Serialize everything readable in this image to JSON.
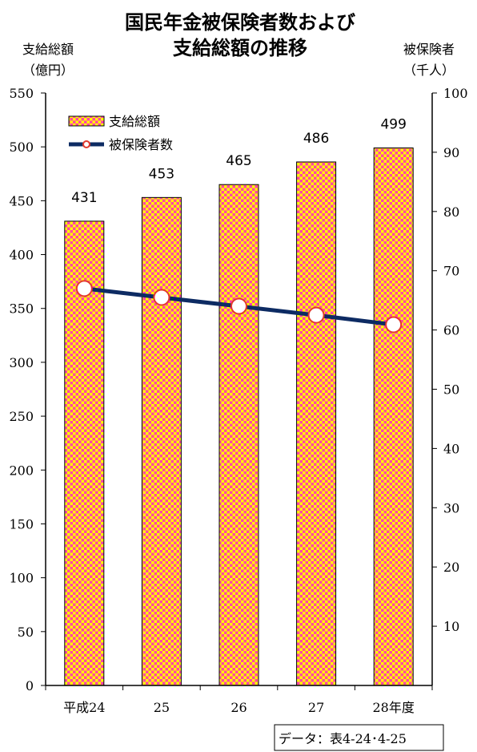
{
  "chart_data": {
    "type": "bar",
    "title_lines": [
      "国民年金被保険者数および",
      "支給総額の推移"
    ],
    "left_axis": {
      "label_lines": [
        "支給総額",
        "（億円）"
      ],
      "range": [
        0,
        550
      ],
      "ticks": [
        0,
        50,
        100,
        150,
        200,
        250,
        300,
        350,
        400,
        450,
        500,
        550
      ]
    },
    "right_axis": {
      "label_lines": [
        "被保険者",
        "（千人）"
      ],
      "range": [
        0,
        100
      ],
      "ticks": [
        10,
        20,
        30,
        40,
        50,
        60,
        70,
        80,
        90,
        100
      ]
    },
    "categories": [
      "平成24",
      "25",
      "26",
      "27",
      "28年度"
    ],
    "series": [
      {
        "name": "支給総額",
        "type": "bar",
        "axis": "left",
        "values": [
          431,
          453,
          465,
          486,
          499
        ],
        "data_labels": [
          "431",
          "453",
          "465",
          "486",
          "499"
        ]
      },
      {
        "name": "被保険者数",
        "type": "line",
        "axis": "right",
        "values": [
          67.0,
          65.5,
          64.0,
          62.5,
          60.9
        ]
      }
    ],
    "legend_position": "top-left",
    "grid": false,
    "colors": {
      "bar_base": "#ff44aa",
      "bar_pattern": "#ffff00",
      "line": "#0d2b63",
      "marker_fill": "#ffffff",
      "marker_stroke": "#e23a2e"
    }
  },
  "note": "データ：表4-24･4-25"
}
